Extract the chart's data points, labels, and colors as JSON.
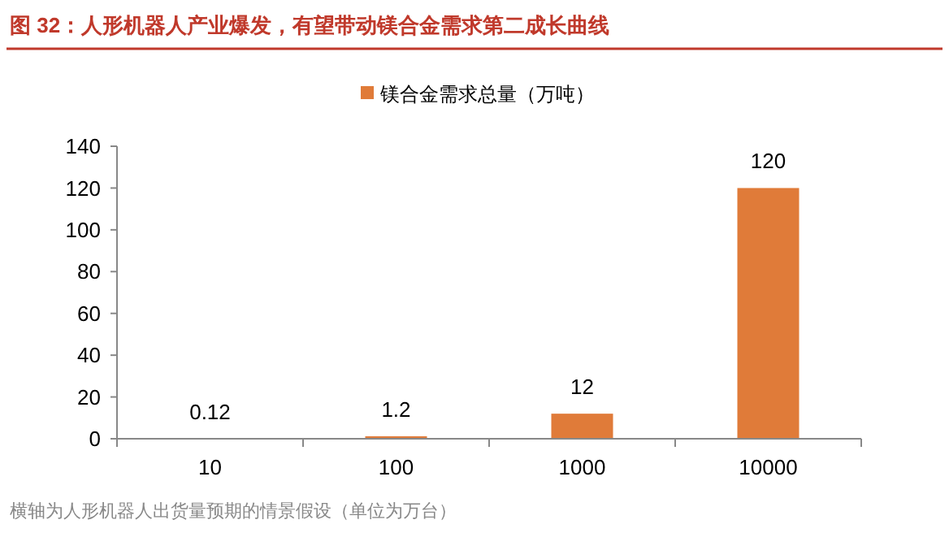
{
  "chart_data": {
    "type": "bar",
    "title": "图 32：人形机器人产业爆发，有望带动镁合金需求第二成长曲线",
    "categories": [
      "10",
      "100",
      "1000",
      "10000"
    ],
    "series": [
      {
        "name": "镁合金需求总量（万吨）",
        "color": "#e07b39",
        "values": [
          0.12,
          1.2,
          12,
          120
        ]
      }
    ],
    "ylim": [
      0,
      140
    ],
    "yticks": [
      0,
      20,
      40,
      60,
      80,
      100,
      120,
      140
    ],
    "data_labels": true,
    "legend": "top",
    "annotations": [
      "横轴为人形机器人出货量预期的情景假设（单位为万台）"
    ]
  }
}
